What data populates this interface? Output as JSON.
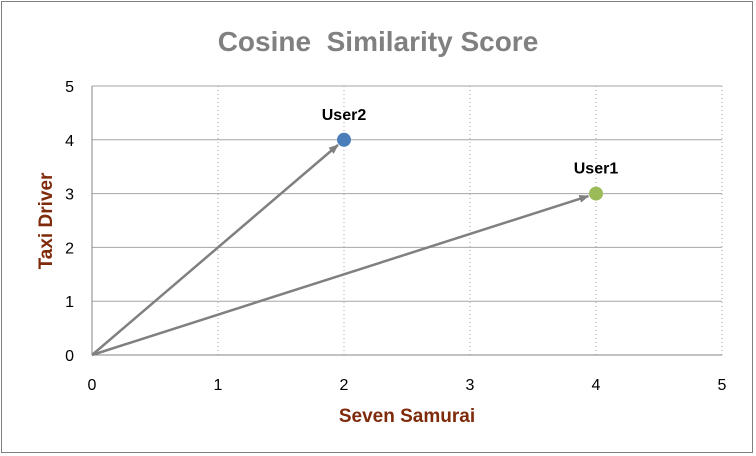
{
  "chart_data": {
    "type": "scatter",
    "title": "Cosine  Similarity Score",
    "xlabel": "Seven Samurai",
    "ylabel": "Taxi Driver",
    "xlim": [
      0,
      5
    ],
    "ylim": [
      0,
      5
    ],
    "x_ticks": [
      "0",
      "1",
      "2",
      "3",
      "4",
      "5"
    ],
    "y_ticks": [
      "0",
      "1",
      "2",
      "3",
      "4",
      "5"
    ],
    "grid": {
      "vertical": true,
      "vertical_style": "dotted",
      "horizontal": true
    },
    "arrows_from_origin": true,
    "points": [
      {
        "label": "User2",
        "x": 2,
        "y": 4,
        "color": "#4a7ebb"
      },
      {
        "label": "User1",
        "x": 4,
        "y": 3,
        "color": "#9bbb59"
      }
    ],
    "arrow_color": "#808080",
    "axis_title_color": "#7f2a0a",
    "title_color": "#808080"
  }
}
